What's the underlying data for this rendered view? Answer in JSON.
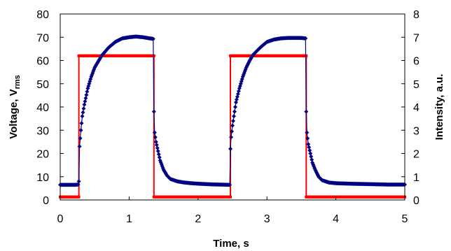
{
  "chart_data": {
    "type": "line",
    "title": "",
    "xlabel": "Time, s",
    "ylabel_left": {
      "main": "Voltage, V",
      "sub": "rms"
    },
    "ylabel_right": "Intensity, a.u.",
    "xlim": [
      0,
      5
    ],
    "ylim_left": [
      0,
      80
    ],
    "ylim_right": [
      0,
      8
    ],
    "x_ticks": [
      "0",
      "1",
      "2",
      "3",
      "4",
      "5"
    ],
    "y_left_ticks": [
      "0",
      "10",
      "20",
      "30",
      "40",
      "50",
      "60",
      "70",
      "80"
    ],
    "y_right_ticks": [
      "0",
      "1",
      "2",
      "3",
      "4",
      "5",
      "6",
      "7",
      "8"
    ],
    "grid": false,
    "legend": "none",
    "series": [
      {
        "axis": "left",
        "color": "#ff0000",
        "marker": "small-square",
        "x": [
          0,
          0.27,
          0.27,
          1.36,
          1.36,
          2.47,
          2.47,
          3.57,
          3.57,
          5
        ],
        "y": [
          1.3,
          1.3,
          62,
          62,
          1.3,
          1.3,
          62,
          62,
          1.3,
          1.3
        ]
      },
      {
        "axis": "right",
        "color": "#000080",
        "marker": "diamond",
        "x": [
          0,
          0.1,
          0.2,
          0.26,
          0.27,
          0.28,
          0.3,
          0.32,
          0.35,
          0.4,
          0.45,
          0.5,
          0.55,
          0.6,
          0.7,
          0.8,
          0.9,
          1.0,
          1.1,
          1.2,
          1.3,
          1.35,
          1.36,
          1.37,
          1.39,
          1.42,
          1.45,
          1.5,
          1.55,
          1.6,
          1.7,
          1.8,
          1.9,
          2.0,
          2.2,
          2.46,
          2.47,
          2.48,
          2.5,
          2.52,
          2.55,
          2.6,
          2.65,
          2.7,
          2.75,
          2.8,
          2.9,
          3.0,
          3.1,
          3.2,
          3.3,
          3.4,
          3.5,
          3.56,
          3.57,
          3.58,
          3.6,
          3.63,
          3.66,
          3.7,
          3.75,
          3.8,
          3.9,
          4.0,
          4.2,
          4.5,
          4.8,
          5.0
        ],
        "y": [
          0.65,
          0.65,
          0.65,
          0.66,
          0.8,
          2.3,
          3.0,
          3.6,
          4.1,
          4.8,
          5.3,
          5.7,
          5.95,
          6.2,
          6.55,
          6.8,
          6.95,
          7.0,
          7.03,
          7.0,
          6.95,
          6.93,
          3.8,
          2.9,
          2.5,
          2.1,
          1.7,
          1.3,
          1.05,
          0.9,
          0.8,
          0.75,
          0.72,
          0.7,
          0.67,
          0.65,
          2.2,
          2.7,
          3.2,
          3.6,
          4.2,
          4.8,
          5.3,
          5.7,
          6.0,
          6.25,
          6.55,
          6.8,
          6.9,
          6.95,
          6.97,
          6.97,
          6.97,
          6.95,
          3.8,
          2.9,
          2.4,
          2.0,
          1.6,
          1.3,
          1.0,
          0.85,
          0.75,
          0.72,
          0.7,
          0.68,
          0.66,
          0.66
        ]
      }
    ]
  }
}
